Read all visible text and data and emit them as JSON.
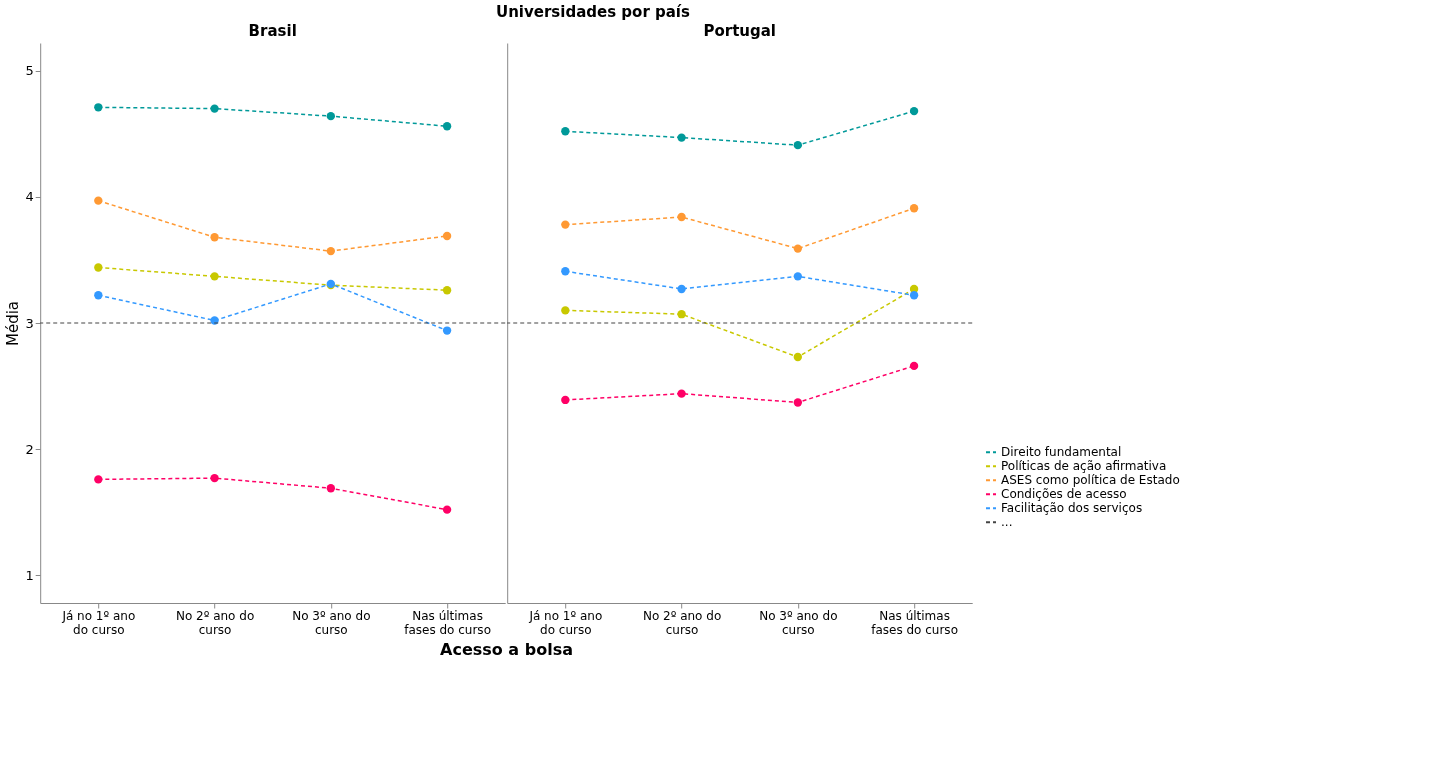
{
  "chart_data": [
    {
      "type": "line",
      "title": "Brasil",
      "annotations": [
        "Universidades por país"
      ],
      "xlabel": "Acesso a bolsa",
      "ylabel": "Média",
      "categories": [
        "Já no 1º ano do curso",
        "No 2º ano do curso",
        "No 3º ano do curso",
        "Nas últimas fases do curso"
      ],
      "ylim": [
        0.78,
        5.22
      ],
      "yticks": [
        1,
        2,
        3,
        4,
        5
      ],
      "grid": false,
      "legend": "bottom right",
      "marker": "circle",
      "line_style": "dashed",
      "series": [
        {
          "name": "Direito fundamental",
          "color": "#009999",
          "values": [
            4.71,
            4.7,
            4.64,
            4.56
          ]
        },
        {
          "name": "Políticas de ação afirmativa",
          "color": "#c8c800",
          "values": [
            3.44,
            3.37,
            3.3,
            3.26
          ]
        },
        {
          "name": "ASES como política de Estado",
          "color": "#ff9933",
          "values": [
            3.97,
            3.68,
            3.57,
            3.69
          ]
        },
        {
          "name": "Condições de acesso",
          "color": "#ff0066",
          "values": [
            1.76,
            1.77,
            1.69,
            1.52
          ]
        },
        {
          "name": "Facilitação dos serviços",
          "color": "#3399ff",
          "values": [
            3.22,
            3.02,
            3.31,
            2.94
          ]
        }
      ],
      "ref_lines": [
        {
          "axis": "y",
          "value": 3,
          "label": "...",
          "color": "#444444",
          "line_style": "dashed"
        }
      ]
    },
    {
      "type": "line",
      "title": "Portugal",
      "categories": [
        "Já no 1º ano do curso",
        "No 2º ano do curso",
        "No 3º ano do curso",
        "Nas últimas fases do curso"
      ],
      "ylim": [
        0.78,
        5.22
      ],
      "yticks": [
        1,
        2,
        3,
        4,
        5
      ],
      "tick_labels": "x",
      "grid": false,
      "legend": "bottom right",
      "marker": "circle",
      "line_style": "dashed",
      "series": [
        {
          "name": "Direito fundamental",
          "color": "#009999",
          "values": [
            4.52,
            4.47,
            4.41,
            4.68
          ]
        },
        {
          "name": "Políticas de ação afirmativa",
          "color": "#c8c800",
          "values": [
            3.1,
            3.07,
            2.73,
            3.27
          ]
        },
        {
          "name": "ASES como política de Estado",
          "color": "#ff9933",
          "values": [
            3.78,
            3.84,
            3.59,
            3.91
          ]
        },
        {
          "name": "Condições de acesso",
          "color": "#ff0066",
          "values": [
            2.39,
            2.44,
            2.37,
            2.66
          ]
        },
        {
          "name": "Facilitação dos serviços",
          "color": "#3399ff",
          "values": [
            3.41,
            3.27,
            3.37,
            3.22
          ]
        }
      ],
      "ref_lines": [
        {
          "axis": "y",
          "value": 3,
          "color": "#444444",
          "line_style": "dashed"
        }
      ]
    }
  ]
}
